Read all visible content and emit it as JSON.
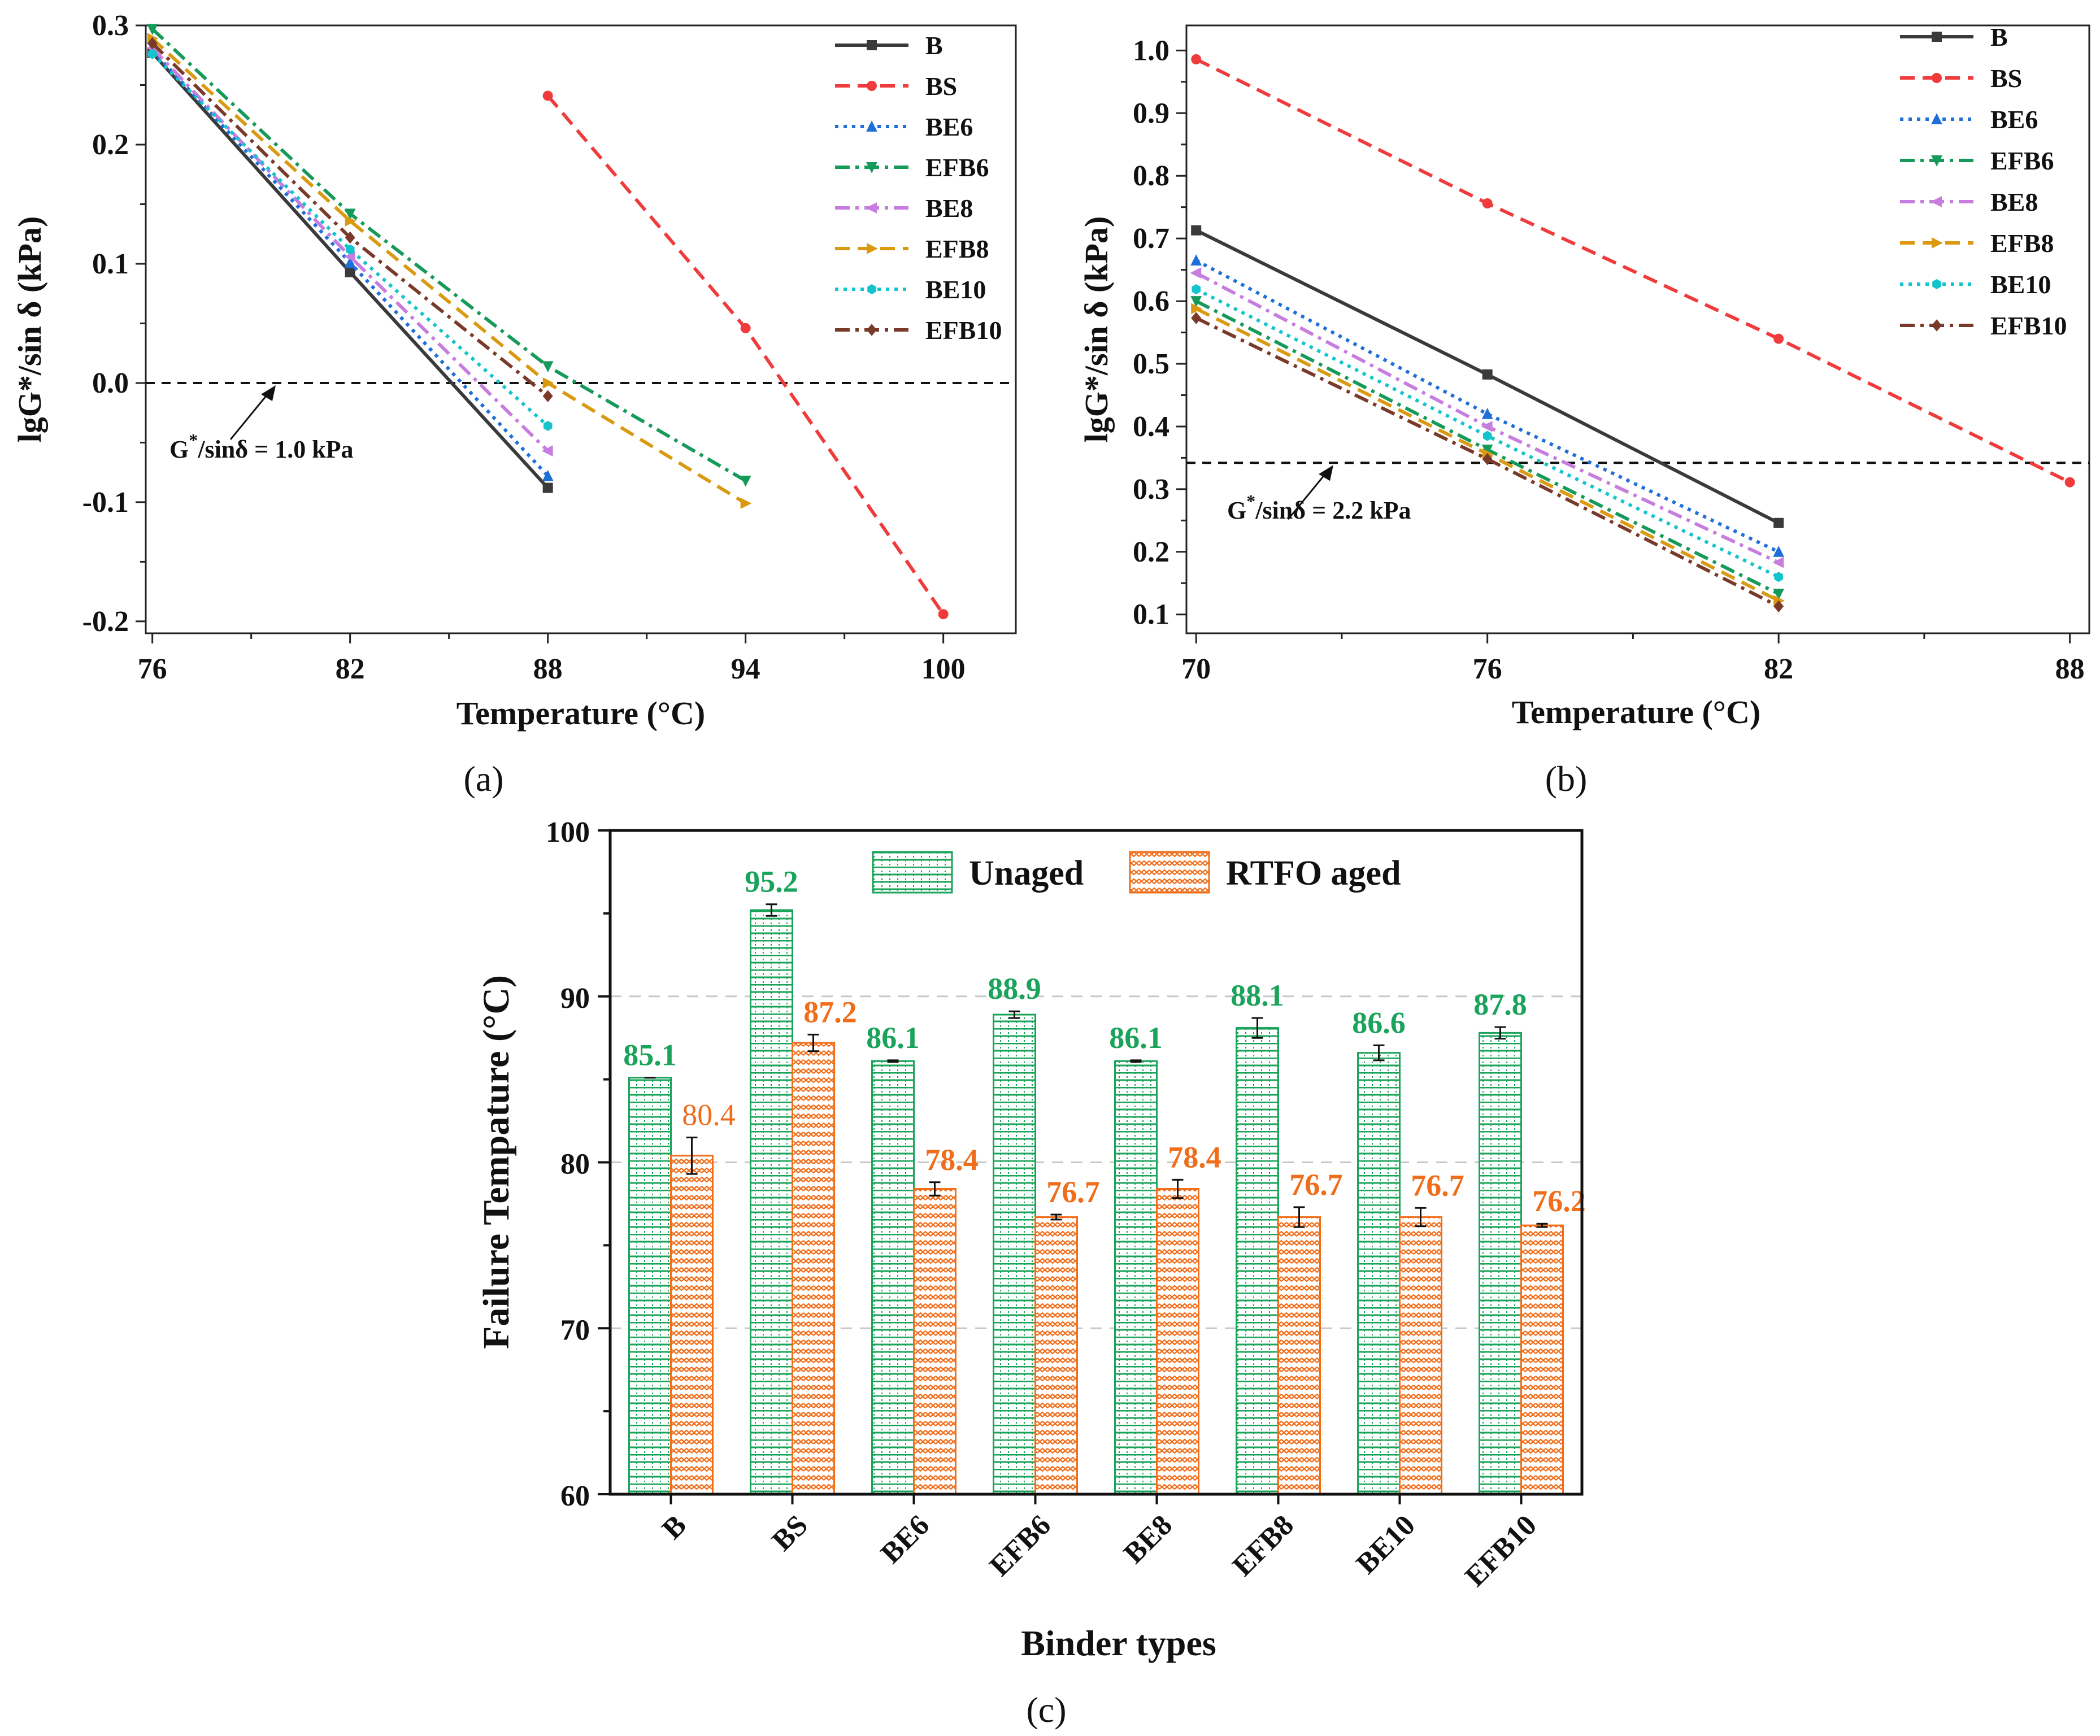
{
  "colors": {
    "B": "#3a3a3a",
    "BS": "#ef3b3b",
    "BE6": "#1f6fd9",
    "EFB6": "#169a5a",
    "BE8": "#c77de0",
    "EFB8": "#d99a12",
    "BE10": "#14c4cc",
    "EFB10": "#7a3a2a",
    "unaged": "#1aa35a",
    "aged": "#f06d1a"
  },
  "chart_data": [
    {
      "id": "a",
      "type": "line",
      "panel_label": "(a)",
      "xlabel": "Temperature (°C)",
      "ylabel": "lgG*/sin δ (kPa)",
      "xlim": [
        75.8,
        102.2
      ],
      "ylim": [
        -0.21,
        0.3
      ],
      "xticks": [
        76,
        82,
        88,
        94,
        100
      ],
      "xtick_labels": [
        "76",
        "82",
        "88",
        "94",
        "100"
      ],
      "yticks": [
        -0.2,
        -0.1,
        0.0,
        0.1,
        0.2,
        0.3
      ],
      "ytick_labels": [
        "-0.2",
        "-0.1",
        "0.0",
        "0.1",
        "0.2",
        "0.3"
      ],
      "reference_line": {
        "y": 0.0,
        "label_prefix": "G",
        "label_sup": "*",
        "label_suffix": "/sinδ = 1.0 kPa"
      },
      "series": [
        {
          "name": "B",
          "style": "solid",
          "marker": "square",
          "x": [
            76,
            82,
            88
          ],
          "y": [
            0.277,
            0.093,
            -0.088
          ]
        },
        {
          "name": "BS",
          "style": "dashed",
          "marker": "circle",
          "x": [
            88,
            94,
            100
          ],
          "y": [
            0.241,
            0.046,
            -0.194
          ]
        },
        {
          "name": "BE6",
          "style": "dotted",
          "marker": "triangle-up",
          "x": [
            76,
            82,
            88
          ],
          "y": [
            0.279,
            0.101,
            -0.078
          ]
        },
        {
          "name": "EFB6",
          "style": "dashdot",
          "marker": "triangle-down",
          "x": [
            76,
            82,
            88,
            94
          ],
          "y": [
            0.297,
            0.142,
            0.014,
            -0.082
          ]
        },
        {
          "name": "BE8",
          "style": "dashdot",
          "marker": "triangle-left",
          "x": [
            76,
            82,
            88
          ],
          "y": [
            0.281,
            0.106,
            -0.057
          ]
        },
        {
          "name": "EFB8",
          "style": "dashed",
          "marker": "triangle-right",
          "x": [
            76,
            82,
            88,
            94
          ],
          "y": [
            0.289,
            0.136,
            0.0,
            -0.101
          ]
        },
        {
          "name": "BE10",
          "style": "dotted",
          "marker": "hexagon",
          "x": [
            76,
            82,
            88
          ],
          "y": [
            0.276,
            0.112,
            -0.036
          ]
        },
        {
          "name": "EFB10",
          "style": "dashdot",
          "marker": "diamond",
          "x": [
            76,
            82,
            88
          ],
          "y": [
            0.285,
            0.122,
            -0.011
          ]
        }
      ]
    },
    {
      "id": "b",
      "type": "line",
      "panel_label": "(b)",
      "xlabel": "Temperature (°C)",
      "ylabel": "lgG*/sin δ (kPa)",
      "xlim": [
        69.8,
        88.4
      ],
      "ylim": [
        0.07,
        1.04
      ],
      "xticks": [
        70,
        76,
        82,
        88
      ],
      "xtick_labels": [
        "70",
        "76",
        "82",
        "88"
      ],
      "yticks": [
        0.1,
        0.2,
        0.3,
        0.4,
        0.5,
        0.6,
        0.7,
        0.8,
        0.9,
        1.0
      ],
      "ytick_labels": [
        "0.1",
        "0.2",
        "0.3",
        "0.4",
        "0.5",
        "0.6",
        "0.7",
        "0.8",
        "0.9",
        "1.0"
      ],
      "reference_line": {
        "y": 0.342,
        "label_prefix": "G",
        "label_sup": "*",
        "label_suffix": "/sinδ = 2.2 kPa"
      },
      "series": [
        {
          "name": "B",
          "style": "solid",
          "marker": "square",
          "x": [
            70,
            76,
            82
          ],
          "y": [
            0.713,
            0.483,
            0.246
          ]
        },
        {
          "name": "BS",
          "style": "dashed",
          "marker": "circle",
          "x": [
            70,
            76,
            82,
            88
          ],
          "y": [
            0.986,
            0.756,
            0.54,
            0.311
          ]
        },
        {
          "name": "BE6",
          "style": "dotted",
          "marker": "triangle-up",
          "x": [
            70,
            76,
            82
          ],
          "y": [
            0.665,
            0.42,
            0.2
          ]
        },
        {
          "name": "EFB6",
          "style": "dashdot",
          "marker": "triangle-down",
          "x": [
            70,
            76,
            82
          ],
          "y": [
            0.6,
            0.363,
            0.133
          ]
        },
        {
          "name": "BE8",
          "style": "dashdot",
          "marker": "triangle-left",
          "x": [
            70,
            76,
            82
          ],
          "y": [
            0.645,
            0.4,
            0.183
          ]
        },
        {
          "name": "EFB8",
          "style": "dashed",
          "marker": "triangle-right",
          "x": [
            70,
            76,
            82
          ],
          "y": [
            0.588,
            0.356,
            0.122
          ]
        },
        {
          "name": "BE10",
          "style": "dotted",
          "marker": "hexagon",
          "x": [
            70,
            76,
            82
          ],
          "y": [
            0.619,
            0.385,
            0.16
          ]
        },
        {
          "name": "EFB10",
          "style": "dashdot",
          "marker": "diamond",
          "x": [
            70,
            76,
            82
          ],
          "y": [
            0.573,
            0.348,
            0.113
          ]
        }
      ]
    },
    {
      "id": "c",
      "type": "bar",
      "panel_label": "(c)",
      "xlabel": "Binder types",
      "ylabel": "Failure Tempature (°C)",
      "ylim": [
        60,
        100
      ],
      "yticks": [
        60,
        70,
        80,
        90,
        100
      ],
      "ytick_labels": [
        "60",
        "70",
        "80",
        "90",
        "100"
      ],
      "gridlines": [
        70,
        80,
        90
      ],
      "categories": [
        "B",
        "BS",
        "BE6",
        "EFB6",
        "BE8",
        "EFB8",
        "BE10",
        "EFB10"
      ],
      "series": [
        {
          "name": "Unaged",
          "values": [
            85.1,
            95.2,
            86.1,
            88.9,
            86.1,
            88.1,
            86.6,
            87.8
          ],
          "labels": [
            "85.1",
            "95.2",
            "86.1",
            "88.9",
            "86.1",
            "88.1",
            "86.6",
            "87.8"
          ],
          "errors": [
            0.0,
            0.35,
            0.05,
            0.2,
            0.05,
            0.6,
            0.45,
            0.35
          ]
        },
        {
          "name": "RTFO aged",
          "values": [
            80.4,
            87.2,
            78.4,
            76.7,
            78.4,
            76.7,
            76.7,
            76.2
          ],
          "labels": [
            "80.4",
            "87.2",
            "78.4",
            "76.7",
            "78.4",
            "76.7",
            "76.7",
            "76.2"
          ],
          "errors": [
            1.1,
            0.5,
            0.4,
            0.15,
            0.55,
            0.6,
            0.55,
            0.1
          ]
        }
      ]
    }
  ]
}
